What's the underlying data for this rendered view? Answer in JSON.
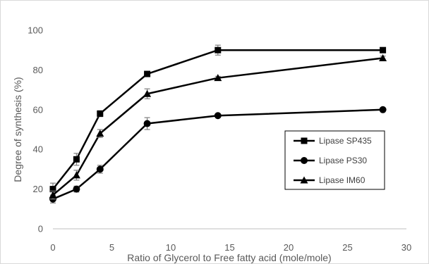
{
  "chart_data": {
    "type": "line",
    "title": "",
    "xlabel": "Ratio of Glycerol to Free fatty acid (mole/mole)",
    "ylabel": "Degree of synthesis (%)",
    "xlim": [
      0,
      30
    ],
    "ylim": [
      0,
      100
    ],
    "x_ticks": [
      0,
      5,
      10,
      15,
      20,
      25,
      30
    ],
    "y_ticks": [
      0,
      20,
      40,
      60,
      80,
      100
    ],
    "grid": false,
    "legend_position": "right",
    "x": [
      0,
      2,
      4,
      8,
      14,
      28
    ],
    "series": [
      {
        "name": "Lipase SP435",
        "marker": "square",
        "color": "#000000",
        "values": [
          20,
          35,
          58,
          78,
          90,
          90
        ],
        "errors": [
          3,
          3,
          1.5,
          0.8,
          2.5,
          0
        ]
      },
      {
        "name": "Lipase PS30",
        "marker": "circle",
        "color": "#000000",
        "values": [
          15,
          20,
          30,
          53,
          57,
          60
        ],
        "errors": [
          2,
          1.5,
          2,
          3,
          0,
          0
        ]
      },
      {
        "name": "Lipase IM60",
        "marker": "triangle",
        "color": "#000000",
        "values": [
          17,
          27,
          48,
          68,
          76,
          86
        ],
        "errors": [
          2,
          2.5,
          2,
          2.5,
          0.8,
          1
        ]
      }
    ]
  }
}
